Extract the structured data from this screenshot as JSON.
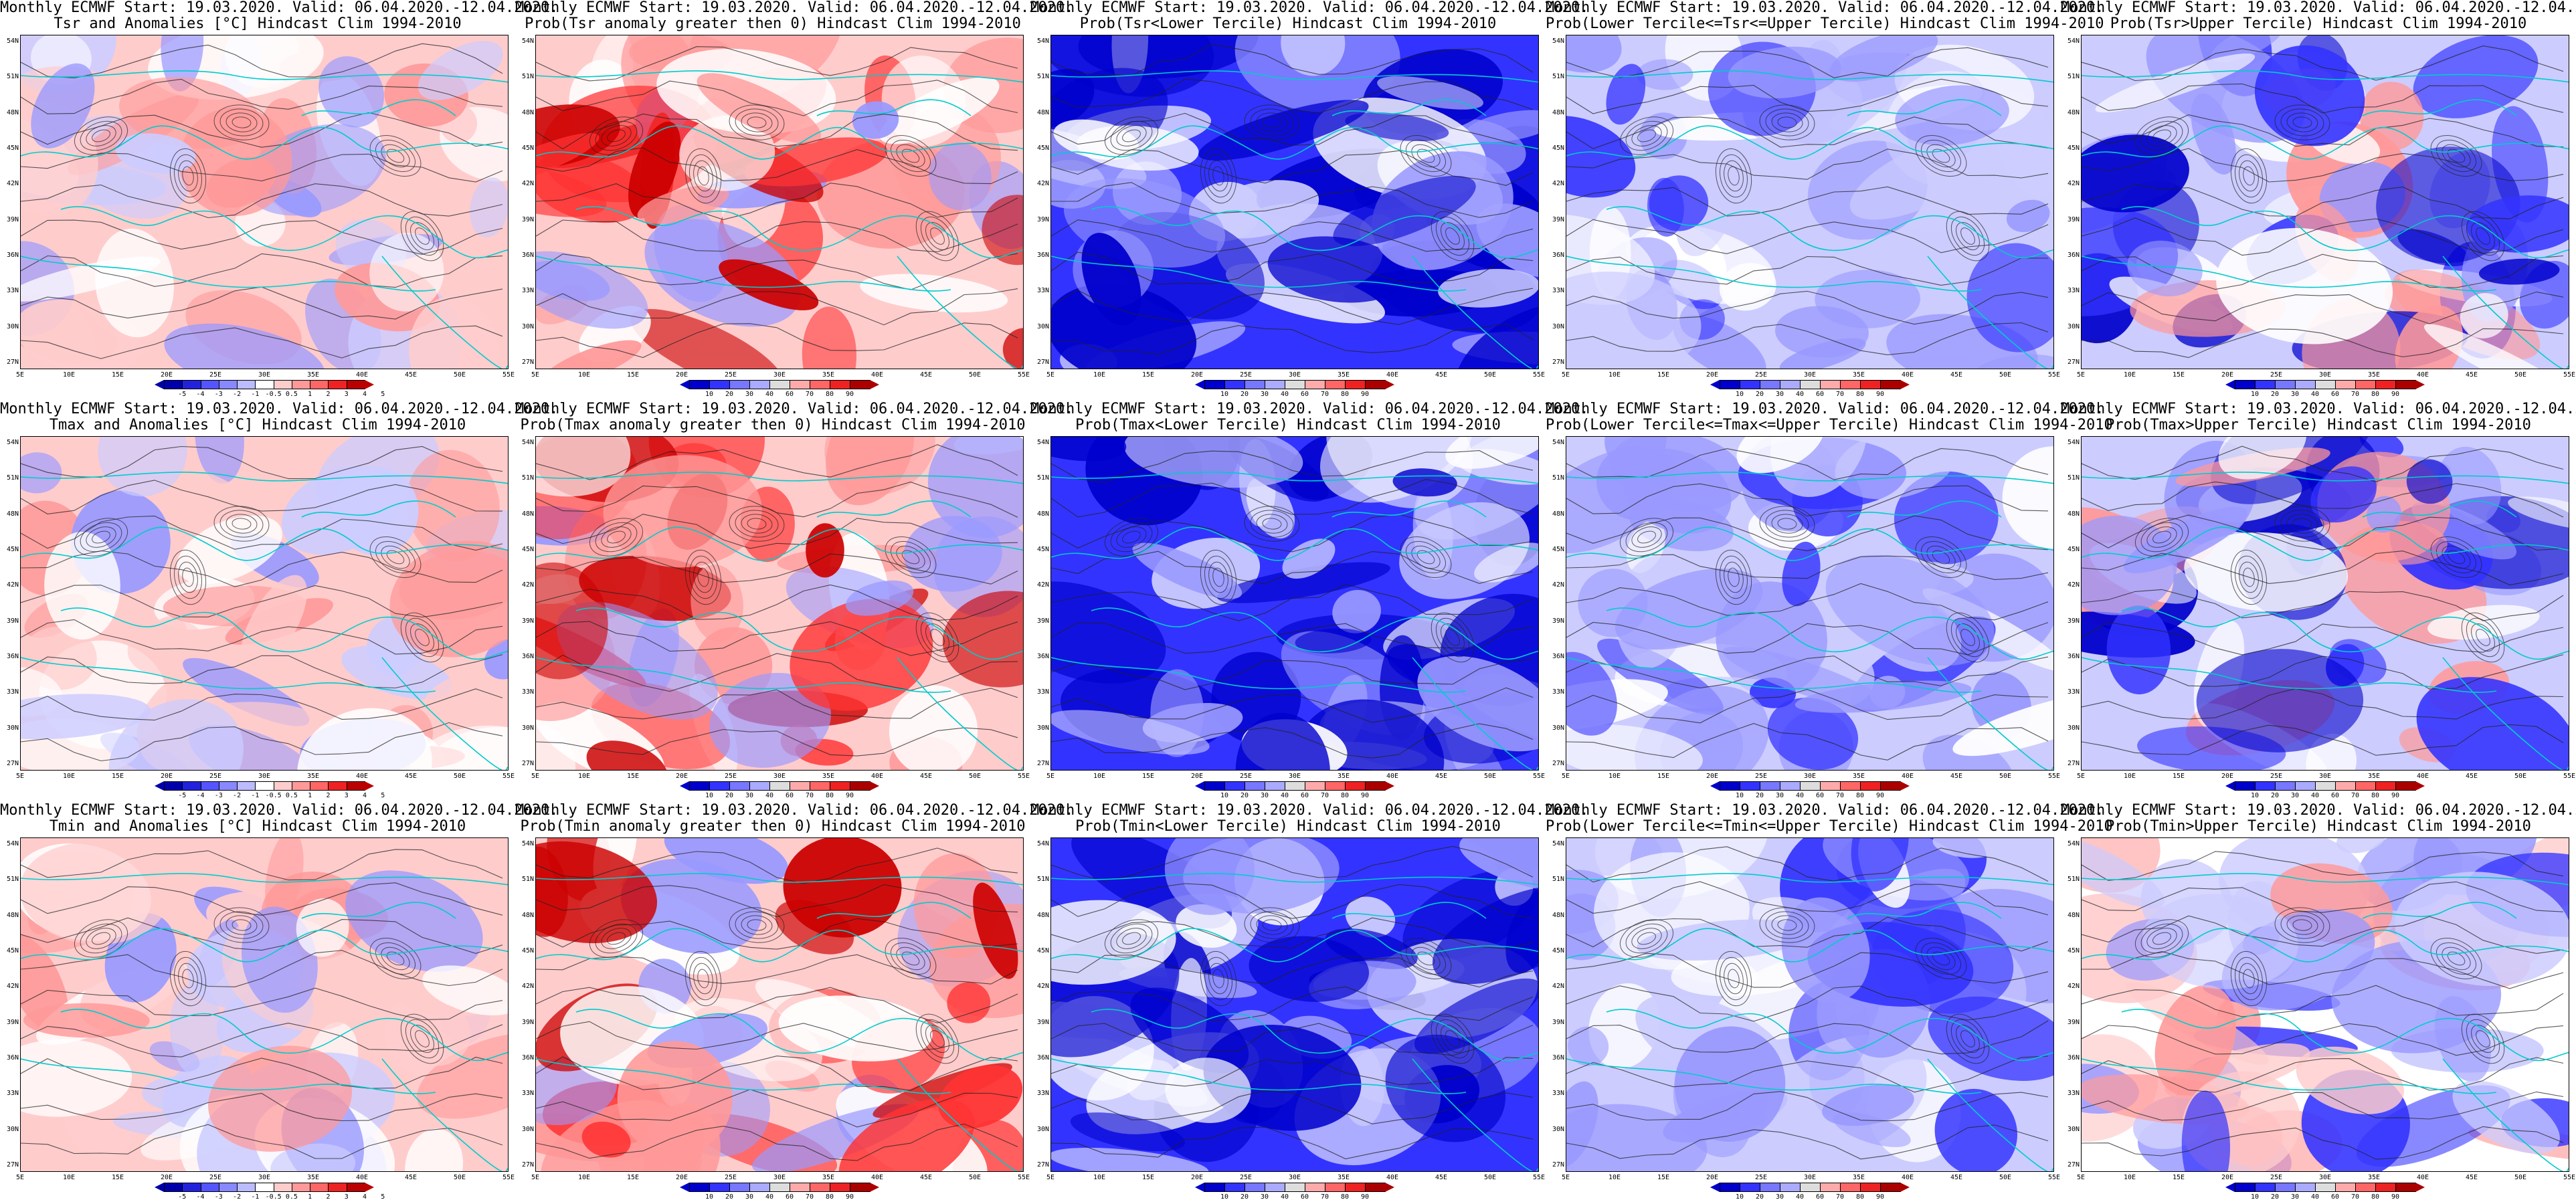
{
  "header_common": "Monthly ECMWF Start: 19.03.2020. Valid: 06.04.2020.-12.04.2020.",
  "lat_labels": [
    "54N",
    "51N",
    "48N",
    "45N",
    "42N",
    "39N",
    "36N",
    "33N",
    "30N",
    "27N"
  ],
  "lon_labels": [
    "5E",
    "10E",
    "15E",
    "20E",
    "25E",
    "30E",
    "35E",
    "40E",
    "45E",
    "50E",
    "55E"
  ],
  "anomaly_scale": [
    "-5",
    "-4",
    "-3",
    "-2",
    "-1",
    "-0.5",
    "0.5",
    "1",
    "2",
    "3",
    "4",
    "5"
  ],
  "prob_scale": [
    "10",
    "20",
    "30",
    "40",
    "60",
    "70",
    "80",
    "90"
  ],
  "colors": {
    "deep_blue": "#0000cc",
    "mid_blue": "#3333ff",
    "light_blue": "#9999ff",
    "pale_blue": "#ccccff",
    "white": "#ffffff",
    "pale_red": "#ffcccc",
    "light_red": "#ff9999",
    "mid_red": "#ff3333",
    "deep_red": "#cc0000",
    "coast": "#00cccc",
    "contour": "#222222"
  },
  "rows": [
    {
      "variable": "Tsr",
      "panels": [
        {
          "title": "Tsr and Anomalies [°C] Hindcast Clim 1994-2010",
          "kind": "anomaly",
          "tone": "warm-light"
        },
        {
          "title": "Prob(Tsr anomaly greater then 0) Hindcast Clim 1994-2010",
          "kind": "prob",
          "tone": "warm"
        },
        {
          "title": "Prob(Tsr<Lower Tercile) Hindcast Clim 1994-2010",
          "kind": "prob",
          "tone": "cold-strong"
        },
        {
          "title": "Prob(Lower Tercile<=Tsr<=Upper Tercile) Hindcast Clim 1994-2010",
          "kind": "prob",
          "tone": "cold-mixed"
        },
        {
          "title": "Prob(Tsr>Upper Tercile) Hindcast Clim 1994-2010",
          "kind": "prob",
          "tone": "mixed"
        }
      ]
    },
    {
      "variable": "Tmax",
      "panels": [
        {
          "title": "Tmax and Anomalies [°C] Hindcast Clim 1994-2010",
          "kind": "anomaly",
          "tone": "warm-light"
        },
        {
          "title": "Prob(Tmax anomaly greater then 0) Hindcast Clim 1994-2010",
          "kind": "prob",
          "tone": "warm"
        },
        {
          "title": "Prob(Tmax<Lower Tercile) Hindcast Clim 1994-2010",
          "kind": "prob",
          "tone": "cold-strong"
        },
        {
          "title": "Prob(Lower Tercile<=Tmax<=Upper Tercile) Hindcast Clim 1994-2010",
          "kind": "prob",
          "tone": "cold-mixed"
        },
        {
          "title": "Prob(Tmax>Upper Tercile) Hindcast Clim 1994-2010",
          "kind": "prob",
          "tone": "mixed"
        }
      ]
    },
    {
      "variable": "Tmin",
      "panels": [
        {
          "title": "Tmin and Anomalies [°C] Hindcast Clim 1994-2010",
          "kind": "anomaly",
          "tone": "warm-light"
        },
        {
          "title": "Prob(Tmin anomaly greater then 0) Hindcast Clim 1994-2010",
          "kind": "prob",
          "tone": "warm"
        },
        {
          "title": "Prob(Tmin<Lower Tercile) Hindcast Clim 1994-2010",
          "kind": "prob",
          "tone": "cold-strong"
        },
        {
          "title": "Prob(Lower Tercile<=Tmin<=Upper Tercile) Hindcast Clim 1994-2010",
          "kind": "prob",
          "tone": "cold-mixed"
        },
        {
          "title": "Prob(Tmin>Upper Tercile) Hindcast Clim 1994-2010",
          "kind": "prob",
          "tone": "warm-weak"
        }
      ]
    }
  ]
}
